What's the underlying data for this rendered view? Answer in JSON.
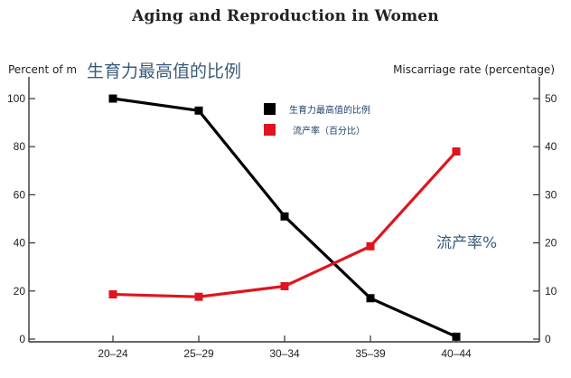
{
  "chart_data": {
    "type": "line",
    "title": "Aging and Reproduction in Women",
    "left_axis_label": "Percent of m",
    "right_axis_label": "Miscarriage rate (percentage)",
    "left_axis_overlay_label": "生育力最高值的比例",
    "categories": [
      "20–24",
      "25–29",
      "30–34",
      "35–39",
      "40–44"
    ],
    "left_ylim": [
      0,
      100
    ],
    "right_ylim": [
      0,
      50
    ],
    "left_ticks": [
      0,
      20,
      40,
      60,
      80,
      100
    ],
    "right_ticks": [
      0,
      10,
      20,
      30,
      40,
      50
    ],
    "series": [
      {
        "name": "生育力最高值的比例",
        "axis": "left",
        "color": "#000000",
        "values": [
          100,
          95,
          51,
          17,
          1
        ]
      },
      {
        "name": "流产率（百分比）",
        "axis": "right",
        "color": "#e0141e",
        "values": [
          9.3,
          8.8,
          11,
          19.3,
          39
        ]
      }
    ],
    "annotation": "流产率%",
    "legend_position": "top-center",
    "grid": false
  }
}
